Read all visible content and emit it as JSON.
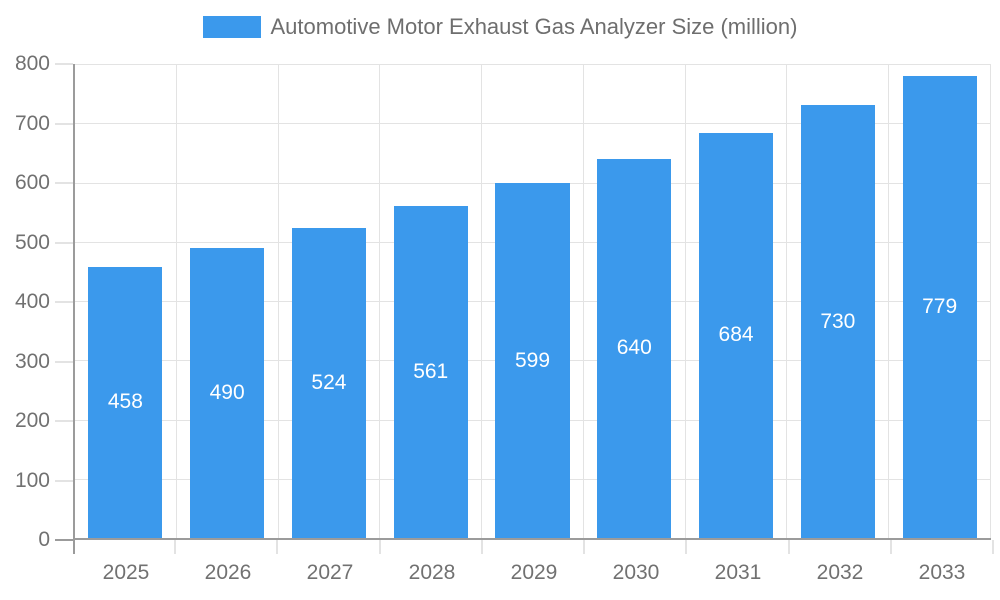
{
  "legend": {
    "label": "Automotive Motor Exhaust Gas Analyzer Size (million)",
    "position": "top"
  },
  "colors": {
    "bar": "#3B99EC",
    "bar_label": "#FFFFFF",
    "axis_line": "#9B9B9B",
    "grid_line": "#E3E3E3",
    "tick_label": "#717171",
    "title": "#6E6E6E",
    "background": "#FFFFFF"
  },
  "chart_data": {
    "type": "bar",
    "title": "Automotive Motor Exhaust Gas Analyzer Size (million)",
    "categories": [
      "2025",
      "2026",
      "2027",
      "2028",
      "2029",
      "2030",
      "2031",
      "2032",
      "2033"
    ],
    "values": [
      458,
      490,
      524,
      561,
      599,
      640,
      684,
      730,
      779
    ],
    "xlabel": "",
    "ylabel": "",
    "ylim": [
      0,
      800
    ],
    "yticks": [
      0,
      100,
      200,
      300,
      400,
      500,
      600,
      700,
      800
    ],
    "grid": true,
    "legend_position": "top",
    "bar_value_labels": true
  }
}
